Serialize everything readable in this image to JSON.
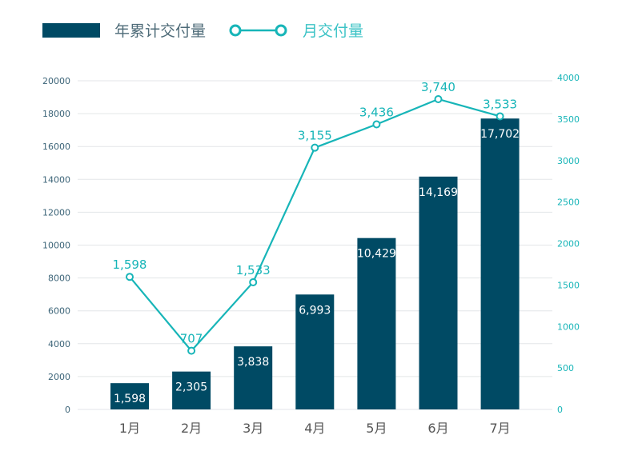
{
  "chart_data": {
    "type": "bar+line",
    "categories": [
      "1月",
      "2月",
      "3月",
      "4月",
      "5月",
      "6月",
      "7月"
    ],
    "series": [
      {
        "name": "年累计交付量",
        "type": "bar",
        "axis": "left",
        "values": [
          1598,
          2305,
          3838,
          6993,
          10429,
          14169,
          17702
        ],
        "labels": [
          "1,598",
          "2,305",
          "3,838",
          "6,993",
          "10,429",
          "14,169",
          "17,702"
        ],
        "color": "#004a64"
      },
      {
        "name": "月交付量",
        "type": "line",
        "axis": "right",
        "values": [
          1598,
          707,
          1533,
          3155,
          3436,
          3740,
          3533
        ],
        "labels": [
          "1,598",
          "707",
          "1,533",
          "3,155",
          "3,436",
          "3,740",
          "3,533"
        ],
        "color": "#17b5b8"
      }
    ],
    "left_axis": {
      "ylim": [
        0,
        20000
      ],
      "ticks": [
        "0",
        "2000",
        "4000",
        "6000",
        "8000",
        "10000",
        "12000",
        "14000",
        "16000",
        "18000",
        "20000"
      ],
      "color": "#3c6478"
    },
    "right_axis": {
      "ylim": [
        0,
        4000
      ],
      "ticks": [
        "0",
        "500",
        "1000",
        "1500",
        "2000",
        "2500",
        "3000",
        "3500",
        "4000"
      ],
      "color": "#17b5b8"
    },
    "grid": true,
    "legend": "top-left"
  }
}
